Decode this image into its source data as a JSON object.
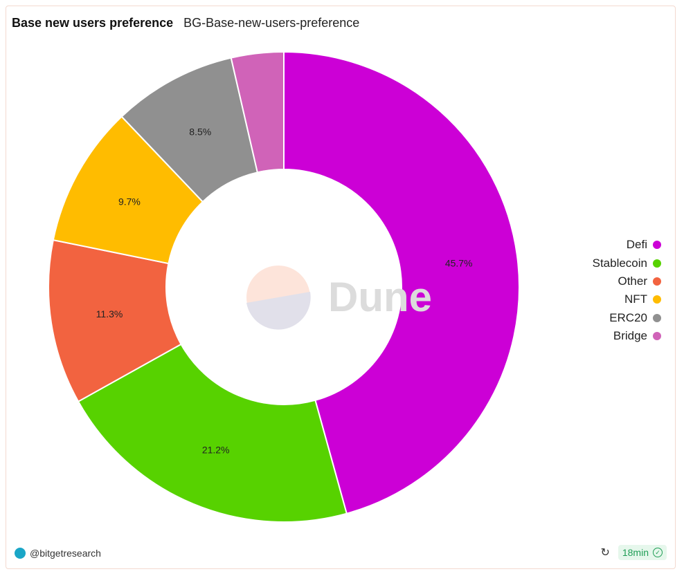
{
  "header": {
    "title": "Base new users preference",
    "subtitle": "BG-Base-new-users-preference"
  },
  "watermark": "Dune",
  "chart_data": {
    "type": "pie",
    "donut": true,
    "legend_position": "right",
    "slices": [
      {
        "name": "Defi",
        "value": 45.7,
        "label": "45.7%",
        "color": "#cc00d6"
      },
      {
        "name": "Stablecoin",
        "value": 21.2,
        "label": "21.2%",
        "color": "#57d200"
      },
      {
        "name": "Other",
        "value": 11.3,
        "label": "11.3%",
        "color": "#f26340"
      },
      {
        "name": "NFT",
        "value": 9.7,
        "label": "9.7%",
        "color": "#ffbc00"
      },
      {
        "name": "ERC20",
        "value": 8.5,
        "label": "8.5%",
        "color": "#909090"
      },
      {
        "name": "Bridge",
        "value": 3.6,
        "label": "",
        "color": "#d063b8"
      }
    ]
  },
  "footer": {
    "author": "@bitgetresearch",
    "refresh_time": "18min"
  }
}
